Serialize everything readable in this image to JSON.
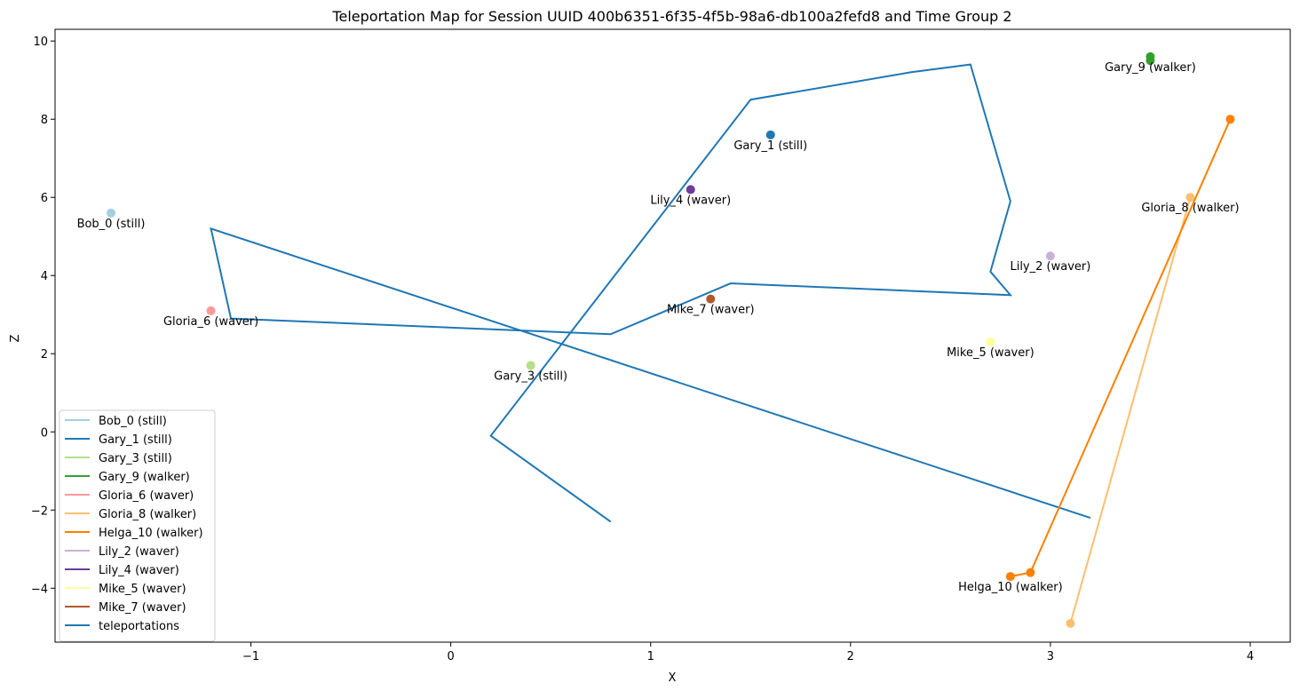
{
  "chart_data": {
    "type": "scatter",
    "title": "Teleportation Map for Session UUID 400b6351-6f35-4f5b-98a6-db100a2fefd8 and Time Group 2",
    "xlabel": "X",
    "ylabel": "Z",
    "xlim": [
      -1.98,
      4.2
    ],
    "ylim": [
      -5.38,
      10.3
    ],
    "xticks": [
      -1,
      0,
      1,
      2,
      3,
      4
    ],
    "yticks": [
      -4,
      -2,
      0,
      2,
      4,
      6,
      8,
      10
    ],
    "grid": false,
    "legend_position": "bottom-left",
    "series": [
      {
        "name": "Bob_0 (still)",
        "color": "#a6cee3",
        "points": [
          [
            -1.7,
            5.6
          ]
        ],
        "label": "Bob_0 (still)",
        "label_at": [
          -1.7,
          5.6
        ]
      },
      {
        "name": "Gary_1 (still)",
        "color": "#1f78b4",
        "points": [
          [
            1.6,
            7.6
          ]
        ],
        "label": "Gary_1 (still)",
        "label_at": [
          1.6,
          7.6
        ]
      },
      {
        "name": "Gary_3 (still)",
        "color": "#b2df8a",
        "points": [
          [
            0.4,
            1.7
          ]
        ],
        "label": "Gary_3 (still)",
        "label_at": [
          0.4,
          1.7
        ]
      },
      {
        "name": "Gary_9 (walker)",
        "color": "#33a02c",
        "points": [
          [
            3.5,
            9.6
          ],
          [
            3.5,
            9.5
          ]
        ],
        "label": "Gary_9 (walker)",
        "label_at": [
          3.5,
          9.6
        ]
      },
      {
        "name": "Gloria_6 (waver)",
        "color": "#fb9a99",
        "points": [
          [
            -1.2,
            3.1
          ]
        ],
        "label": "Gloria_6 (waver)",
        "label_at": [
          -1.2,
          3.1
        ]
      },
      {
        "name": "Gloria_8 (walker)",
        "color": "#fdbf6f",
        "points": [
          [
            3.7,
            6.0
          ],
          [
            3.1,
            -4.9
          ]
        ],
        "label": "Gloria_8 (walker)",
        "label_at": [
          3.7,
          6.0
        ]
      },
      {
        "name": "Helga_10 (walker)",
        "color": "#ff7f00",
        "points": [
          [
            3.9,
            8.0
          ],
          [
            2.9,
            -3.6
          ],
          [
            2.8,
            -3.7
          ]
        ],
        "label": "Helga_10 (walker)",
        "label_at": [
          2.8,
          -3.7
        ]
      },
      {
        "name": "Lily_2 (waver)",
        "color": "#cab2d6",
        "points": [
          [
            3.0,
            4.5
          ]
        ],
        "label": "Lily_2 (waver)",
        "label_at": [
          3.0,
          4.5
        ]
      },
      {
        "name": "Lily_4 (waver)",
        "color": "#6a3d9a",
        "points": [
          [
            1.2,
            6.2
          ]
        ],
        "label": "Lily_4 (waver)",
        "label_at": [
          1.2,
          6.2
        ]
      },
      {
        "name": "Mike_5 (waver)",
        "color": "#ffff99",
        "points": [
          [
            2.7,
            2.3
          ]
        ],
        "label": "Mike_5 (waver)",
        "label_at": [
          2.7,
          2.3
        ]
      },
      {
        "name": "Mike_7 (waver)",
        "color": "#b15928",
        "points": [
          [
            1.3,
            3.4
          ]
        ],
        "label": "Mike_7 (waver)",
        "label_at": [
          1.3,
          3.4
        ]
      }
    ],
    "teleportations": {
      "name": "teleportations",
      "color": "#1f77b4",
      "path": [
        [
          0.8,
          -2.3
        ],
        [
          0.2,
          -0.1
        ],
        [
          1.5,
          8.5
        ],
        [
          2.3,
          9.2
        ],
        [
          2.6,
          9.4
        ],
        [
          2.8,
          5.9
        ],
        [
          2.7,
          4.1
        ],
        [
          2.8,
          3.5
        ],
        [
          1.4,
          3.8
        ],
        [
          0.8,
          2.5
        ],
        [
          -1.1,
          2.9
        ],
        [
          -1.2,
          5.2
        ],
        [
          3.2,
          -2.2
        ]
      ]
    }
  }
}
